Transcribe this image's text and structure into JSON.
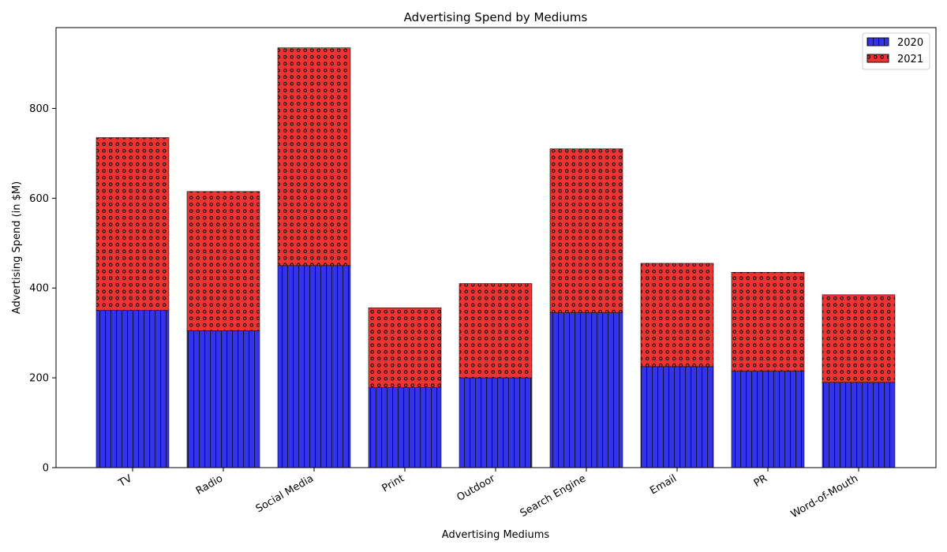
{
  "chart_data": {
    "type": "bar",
    "stacked": true,
    "title": "Advertising Spend by Mediums",
    "xlabel": "Advertising Mediums",
    "ylabel": "Advertising Spend (in $M)",
    "categories": [
      "TV",
      "Radio",
      "Social Media",
      "Print",
      "Outdoor",
      "Search Engine",
      "Email",
      "PR",
      "Word-of-Mouth"
    ],
    "series": [
      {
        "name": "2020",
        "color": "#3333ee",
        "pattern": "vertical-lines",
        "values": [
          350,
          305,
          450,
          178,
          200,
          345,
          225,
          215,
          190
        ]
      },
      {
        "name": "2021",
        "color": "#ee3333",
        "pattern": "circles",
        "values": [
          385,
          310,
          485,
          178,
          210,
          365,
          230,
          220,
          195
        ]
      }
    ],
    "ylim": [
      0,
      980
    ],
    "yticks": [
      0,
      200,
      400,
      600,
      800
    ],
    "grid": false,
    "legend_position": "top-right"
  }
}
